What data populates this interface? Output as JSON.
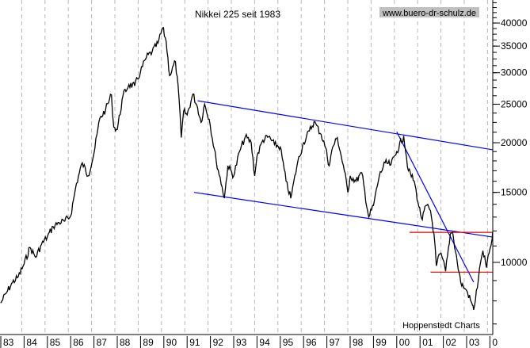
{
  "chart_data": {
    "type": "line",
    "title": "Nikkei 225 seit 1983",
    "watermark": "www.buero-dr-schulz.de",
    "credit": "Hoppenstedt Charts",
    "y_scale": "log",
    "ylim": [
      6590,
      45700
    ],
    "xlim": [
      1983.0,
      2004.12
    ],
    "y_ticks": [
      10000,
      15000,
      20000,
      25000,
      30000,
      35000,
      40000
    ],
    "y_tick_labels": [
      "10000",
      "15000",
      "20000",
      "25000",
      "30000",
      "35000",
      "40000"
    ],
    "x_tick_labels": [
      "83",
      "84",
      "85",
      "86",
      "87",
      "88",
      "89",
      "90",
      "91",
      "92",
      "93",
      "94",
      "95",
      "96",
      "97",
      "98",
      "99",
      "00",
      "01",
      "02",
      "03",
      "0"
    ],
    "grid": "vertical dashed",
    "colors": {
      "price": "#000000",
      "trendlines": "#0000ff",
      "support_lines": "#e00000",
      "watermark_bg": "#c0c0c0"
    },
    "series": [
      {
        "points": [
          [
            1983.0,
            7900
          ],
          [
            1983.25,
            8400
          ],
          [
            1983.5,
            8900
          ],
          [
            1983.75,
            9200
          ],
          [
            1984.0,
            9900
          ],
          [
            1984.25,
            10900
          ],
          [
            1984.5,
            10300
          ],
          [
            1984.75,
            11100
          ],
          [
            1985.0,
            11600
          ],
          [
            1985.25,
            12300
          ],
          [
            1985.5,
            12600
          ],
          [
            1985.75,
            12700
          ],
          [
            1986.0,
            13100
          ],
          [
            1986.25,
            15800
          ],
          [
            1986.5,
            17800
          ],
          [
            1986.75,
            16500
          ],
          [
            1987.0,
            18800
          ],
          [
            1987.25,
            23000
          ],
          [
            1987.5,
            24200
          ],
          [
            1987.75,
            26400
          ],
          [
            1987.85,
            21900
          ],
          [
            1988.0,
            21600
          ],
          [
            1988.25,
            26300
          ],
          [
            1988.5,
            28000
          ],
          [
            1988.75,
            27800
          ],
          [
            1989.0,
            30200
          ],
          [
            1989.25,
            32800
          ],
          [
            1989.5,
            33900
          ],
          [
            1989.75,
            35600
          ],
          [
            1989.95,
            38900
          ],
          [
            1990.1,
            36000
          ],
          [
            1990.25,
            29500
          ],
          [
            1990.5,
            32000
          ],
          [
            1990.65,
            26000
          ],
          [
            1990.75,
            20600
          ],
          [
            1990.85,
            24000
          ],
          [
            1991.0,
            23500
          ],
          [
            1991.25,
            26500
          ],
          [
            1991.45,
            24500
          ],
          [
            1991.6,
            22500
          ],
          [
            1991.75,
            25000
          ],
          [
            1991.95,
            22900
          ],
          [
            1992.25,
            18000
          ],
          [
            1992.5,
            15500
          ],
          [
            1992.6,
            14500
          ],
          [
            1992.75,
            17500
          ],
          [
            1993.0,
            16500
          ],
          [
            1993.25,
            19000
          ],
          [
            1993.5,
            20700
          ],
          [
            1993.75,
            20000
          ],
          [
            1993.9,
            16500
          ],
          [
            1994.0,
            18500
          ],
          [
            1994.25,
            20300
          ],
          [
            1994.5,
            20700
          ],
          [
            1994.75,
            19800
          ],
          [
            1995.0,
            19500
          ],
          [
            1995.25,
            16000
          ],
          [
            1995.45,
            14500
          ],
          [
            1995.75,
            17900
          ],
          [
            1996.0,
            20000
          ],
          [
            1996.25,
            21400
          ],
          [
            1996.45,
            22600
          ],
          [
            1996.75,
            21000
          ],
          [
            1996.95,
            19400
          ],
          [
            1997.1,
            17500
          ],
          [
            1997.25,
            19500
          ],
          [
            1997.45,
            20600
          ],
          [
            1997.75,
            17000
          ],
          [
            1997.9,
            15000
          ],
          [
            1998.0,
            16500
          ],
          [
            1998.25,
            16000
          ],
          [
            1998.5,
            16800
          ],
          [
            1998.75,
            13500
          ],
          [
            1998.8,
            13000
          ],
          [
            1999.0,
            13900
          ],
          [
            1999.25,
            16500
          ],
          [
            1999.5,
            17800
          ],
          [
            1999.75,
            17600
          ],
          [
            2000.0,
            19000
          ],
          [
            2000.3,
            20800
          ],
          [
            2000.5,
            17000
          ],
          [
            2000.75,
            16000
          ],
          [
            2000.95,
            13800
          ],
          [
            2001.1,
            12800
          ],
          [
            2001.25,
            13900
          ],
          [
            2001.45,
            13500
          ],
          [
            2001.6,
            11800
          ],
          [
            2001.7,
            9800
          ],
          [
            2001.85,
            10500
          ],
          [
            2001.95,
            10300
          ],
          [
            2002.1,
            9500
          ],
          [
            2002.3,
            11800
          ],
          [
            2002.4,
            11900
          ],
          [
            2002.6,
            10000
          ],
          [
            2002.75,
            8900
          ],
          [
            2002.9,
            8600
          ],
          [
            2003.0,
            8500
          ],
          [
            2003.25,
            7800
          ],
          [
            2003.3,
            7600
          ],
          [
            2003.5,
            9000
          ],
          [
            2003.6,
            10000
          ],
          [
            2003.7,
            10700
          ],
          [
            2003.85,
            9700
          ],
          [
            2004.0,
            10800
          ],
          [
            2004.1,
            11500
          ],
          [
            2004.12,
            11900
          ]
        ]
      }
    ],
    "trendlines": [
      {
        "from": [
          1991.45,
          25500
        ],
        "to": [
          2004.12,
          19200
        ],
        "color": "#0000ff"
      },
      {
        "from": [
          1991.3,
          15000
        ],
        "to": [
          2004.12,
          11580
        ],
        "color": "#0000ff"
      },
      {
        "from": [
          2000.0,
          21300
        ],
        "to": [
          2003.3,
          8920
        ],
        "color": "#0000ff"
      },
      {
        "from": [
          2000.55,
          11900
        ],
        "to": [
          2004.12,
          11900
        ],
        "color": "#e00000"
      },
      {
        "from": [
          2001.45,
          9450
        ],
        "to": [
          2004.12,
          9450
        ],
        "color": "#e00000"
      }
    ]
  }
}
